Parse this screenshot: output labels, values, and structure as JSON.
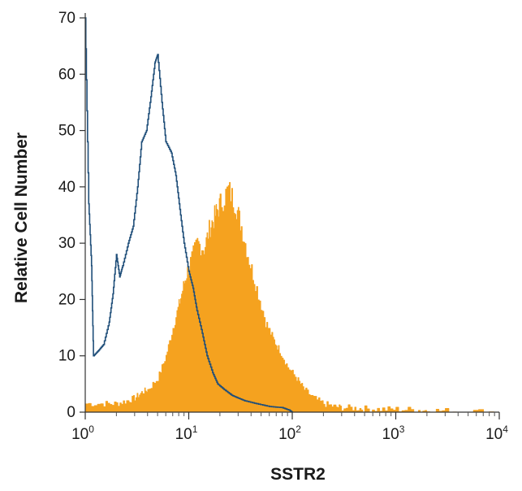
{
  "chart_data": {
    "type": "histogram",
    "xlabel": "SSTR2",
    "ylabel": "Relative Cell Number",
    "x_scale": "log",
    "xlim": [
      1,
      10000
    ],
    "ylim": [
      0,
      70
    ],
    "x_ticks": [
      {
        "base": "10",
        "exp": "0",
        "value": 1
      },
      {
        "base": "10",
        "exp": "1",
        "value": 10
      },
      {
        "base": "10",
        "exp": "2",
        "value": 100
      },
      {
        "base": "10",
        "exp": "3",
        "value": 1000
      },
      {
        "base": "10",
        "exp": "4",
        "value": 10000
      }
    ],
    "y_ticks": [
      0,
      10,
      20,
      30,
      40,
      50,
      60,
      70
    ],
    "grid": false,
    "series": [
      {
        "kind": "filled",
        "color": "#F5A21F",
        "points": [
          [
            1.0,
            1.5
          ],
          [
            1.5,
            1.5
          ],
          [
            2.0,
            1.5
          ],
          [
            2.5,
            2.0
          ],
          [
            3.0,
            2.5
          ],
          [
            3.5,
            3.5
          ],
          [
            4.0,
            4.0
          ],
          [
            5.0,
            6.0
          ],
          [
            6.0,
            10.0
          ],
          [
            7.0,
            15.0
          ],
          [
            8.0,
            19.0
          ],
          [
            9.0,
            23.0
          ],
          [
            10.0,
            26.0
          ],
          [
            12.0,
            30.0
          ],
          [
            14.0,
            29.0
          ],
          [
            16.0,
            33.0
          ],
          [
            18.0,
            35.0
          ],
          [
            20.0,
            37.0
          ],
          [
            24.0,
            39.5
          ],
          [
            28.0,
            37.0
          ],
          [
            32.0,
            33.0
          ],
          [
            38.0,
            27.0
          ],
          [
            45.0,
            22.0
          ],
          [
            55.0,
            16.0
          ],
          [
            65.0,
            13.0
          ],
          [
            75.0,
            11.0
          ],
          [
            90.0,
            8.0
          ],
          [
            110.0,
            6.0
          ],
          [
            130.0,
            4.0
          ],
          [
            160.0,
            2.5
          ],
          [
            200.0,
            1.5
          ],
          [
            250.0,
            1.0
          ],
          [
            300.0,
            0.8
          ],
          [
            400.0,
            0.7
          ],
          [
            500.0,
            0.6
          ],
          [
            700.0,
            0.5
          ],
          [
            1000.0,
            0.5
          ],
          [
            1500.0,
            0.4
          ],
          [
            2000.0,
            0.3
          ],
          [
            3000.0,
            0.2
          ],
          [
            5000.0,
            0.1
          ],
          [
            10000.0,
            0.0
          ]
        ]
      },
      {
        "kind": "outline",
        "color": "#1F4E79",
        "points": [
          [
            1.0,
            70.0
          ],
          [
            1.08,
            37.0
          ],
          [
            1.15,
            26.0
          ],
          [
            1.2,
            10.0
          ],
          [
            1.35,
            11.0
          ],
          [
            1.5,
            12.0
          ],
          [
            1.7,
            16.0
          ],
          [
            1.85,
            21.0
          ],
          [
            2.0,
            28.0
          ],
          [
            2.15,
            24.0
          ],
          [
            2.3,
            26.0
          ],
          [
            2.6,
            30.0
          ],
          [
            2.9,
            33.0
          ],
          [
            3.2,
            40.0
          ],
          [
            3.5,
            48.0
          ],
          [
            3.9,
            50.0
          ],
          [
            4.3,
            56.0
          ],
          [
            4.7,
            62.0
          ],
          [
            5.0,
            63.5
          ],
          [
            5.5,
            55.0
          ],
          [
            6.0,
            48.0
          ],
          [
            6.8,
            46.0
          ],
          [
            7.5,
            42.0
          ],
          [
            8.2,
            36.0
          ],
          [
            9.0,
            30.0
          ],
          [
            10.0,
            25.0
          ],
          [
            11.0,
            22.0
          ],
          [
            12.0,
            18.0
          ],
          [
            13.5,
            14.0
          ],
          [
            15.0,
            10.0
          ],
          [
            17.0,
            7.0
          ],
          [
            19.0,
            5.0
          ],
          [
            22.0,
            4.0
          ],
          [
            26.0,
            3.0
          ],
          [
            30.0,
            2.5
          ],
          [
            35.0,
            2.0
          ],
          [
            45.0,
            1.5
          ],
          [
            60.0,
            1.0
          ],
          [
            80.0,
            0.8
          ],
          [
            95.0,
            0.3
          ],
          [
            100.0,
            0.0
          ]
        ]
      }
    ]
  }
}
